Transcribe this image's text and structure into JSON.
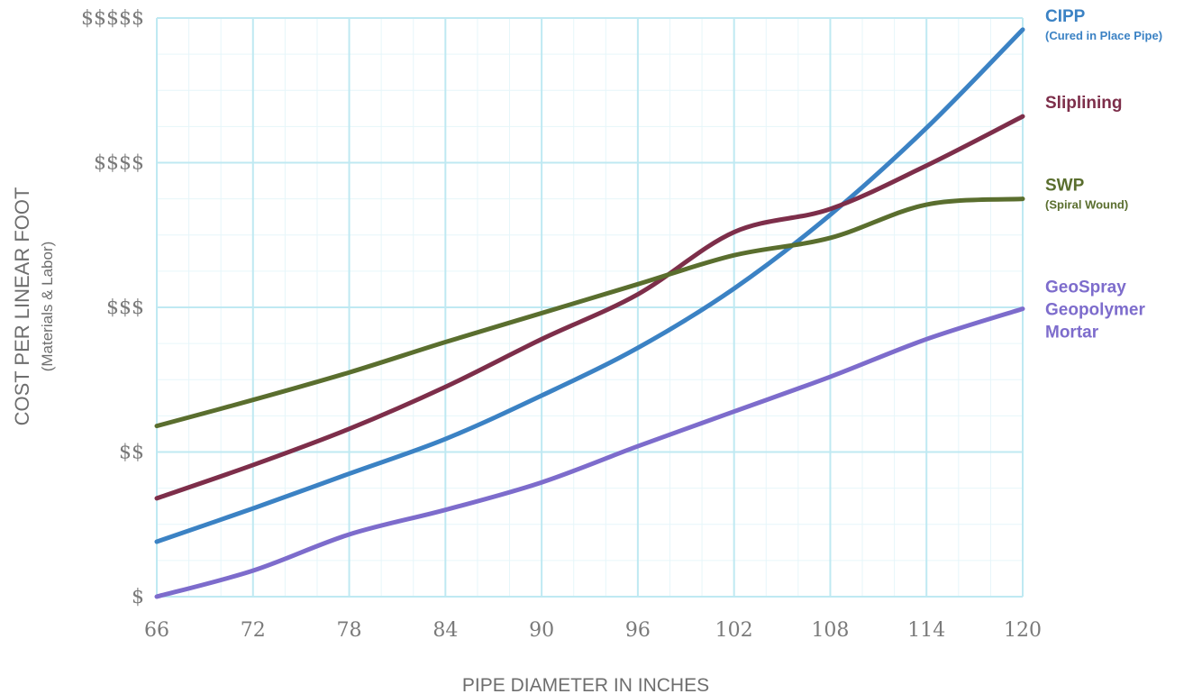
{
  "chart_data": {
    "type": "line",
    "title": "",
    "xlabel": "PIPE DIAMETER IN INCHES",
    "ylabel": "COST PER LINEAR FOOT",
    "ylabel_sub": "(Materials & Labor)",
    "x_ticks": [
      66,
      72,
      78,
      84,
      90,
      96,
      102,
      108,
      114,
      120
    ],
    "y_ticks": [
      "$",
      "$$",
      "$$$",
      "$$$$",
      "$$$$$"
    ],
    "xlim": [
      66,
      120
    ],
    "ylim": [
      1,
      5
    ],
    "grid": true,
    "legend_placement": "right, at line ends",
    "x": [
      66,
      72,
      78,
      84,
      90,
      96,
      102,
      108,
      114,
      120
    ],
    "series": [
      {
        "name": "CIPP",
        "name_sub": "(Cured in Place Pipe)",
        "color": "#3b82c4",
        "values": [
          1.38,
          1.61,
          1.85,
          2.09,
          2.39,
          2.72,
          3.13,
          3.64,
          4.24,
          4.92
        ]
      },
      {
        "name": "Sliplining",
        "name_sub": "",
        "color": "#7d2e4a",
        "values": [
          1.68,
          1.91,
          2.16,
          2.45,
          2.78,
          3.09,
          3.52,
          3.68,
          3.98,
          4.32
        ]
      },
      {
        "name": "SWP",
        "name_sub": "(Spiral Wound)",
        "color": "#5a6e2e",
        "values": [
          2.18,
          2.36,
          2.55,
          2.76,
          2.96,
          3.16,
          3.36,
          3.48,
          3.71,
          3.75
        ]
      },
      {
        "name": "GeoSpray\nGeopolymer\nMortar",
        "name_sub": "",
        "color": "#7d6ccc",
        "values": [
          1.0,
          1.18,
          1.43,
          1.6,
          1.79,
          2.04,
          2.28,
          2.52,
          2.78,
          2.99
        ]
      }
    ]
  }
}
